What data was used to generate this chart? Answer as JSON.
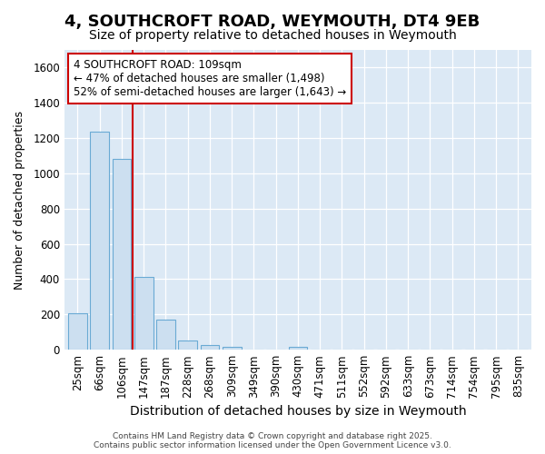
{
  "title": "4, SOUTHCROFT ROAD, WEYMOUTH, DT4 9EB",
  "subtitle": "Size of property relative to detached houses in Weymouth",
  "xlabel": "Distribution of detached houses by size in Weymouth",
  "ylabel": "Number of detached properties",
  "categories": [
    "25sqm",
    "66sqm",
    "106sqm",
    "147sqm",
    "187sqm",
    "228sqm",
    "268sqm",
    "309sqm",
    "349sqm",
    "390sqm",
    "430sqm",
    "471sqm",
    "511sqm",
    "552sqm",
    "592sqm",
    "633sqm",
    "673sqm",
    "714sqm",
    "754sqm",
    "795sqm",
    "835sqm"
  ],
  "values": [
    205,
    1235,
    1080,
    415,
    170,
    50,
    25,
    15,
    0,
    0,
    15,
    0,
    0,
    0,
    0,
    0,
    0,
    0,
    0,
    0,
    0
  ],
  "bar_color": "#ccdff0",
  "bar_edge_color": "#6aaad4",
  "red_line_index": 2,
  "annotation_title": "4 SOUTHCROFT ROAD: 109sqm",
  "annotation_line1": "← 47% of detached houses are smaller (1,498)",
  "annotation_line2": "52% of semi-detached houses are larger (1,643) →",
  "annotation_text_color": "#000000",
  "annotation_box_edge_color": "#cc0000",
  "ylim": [
    0,
    1700
  ],
  "yticks": [
    0,
    200,
    400,
    600,
    800,
    1000,
    1200,
    1400,
    1600
  ],
  "figure_background_color": "#ffffff",
  "plot_background_color": "#dce9f5",
  "grid_color": "#ffffff",
  "footer_line1": "Contains HM Land Registry data © Crown copyright and database right 2025.",
  "footer_line2": "Contains public sector information licensed under the Open Government Licence v3.0.",
  "title_fontsize": 13,
  "subtitle_fontsize": 10,
  "xlabel_fontsize": 10,
  "ylabel_fontsize": 9,
  "tick_fontsize": 8.5
}
